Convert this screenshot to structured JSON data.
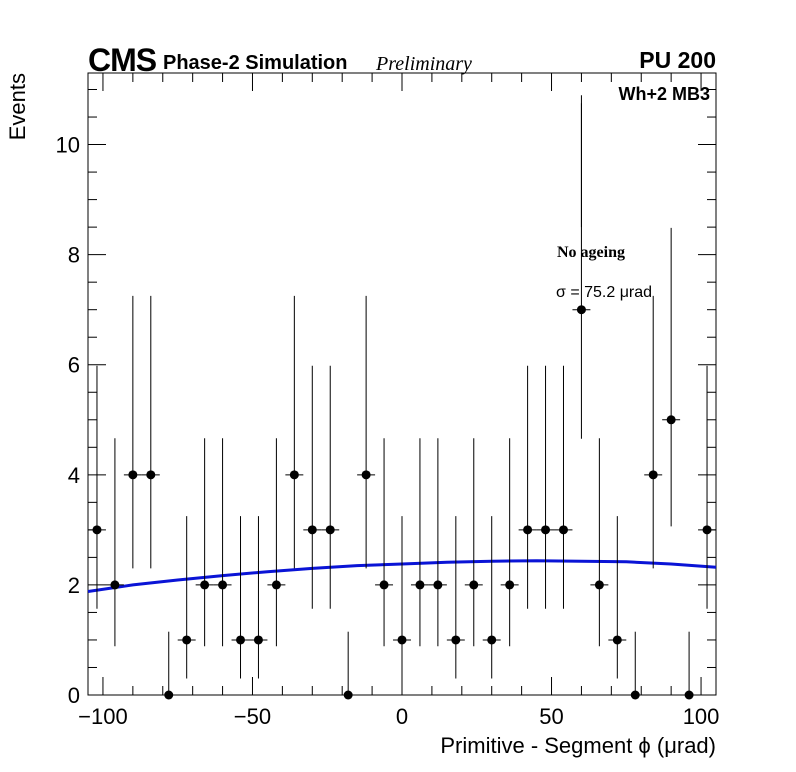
{
  "header": {
    "experiment": "CMS",
    "subtitle": "Phase-2 Simulation",
    "status": "Preliminary",
    "pileup": "PU 200"
  },
  "annotations": {
    "chamber": "Wh+2 MB3",
    "condition": "No ageing",
    "sigma": "σ = 75.2  μrad"
  },
  "colors": {
    "fit": "#0a14d6",
    "points": "#000000"
  },
  "chart_data": {
    "type": "scatter",
    "title": "",
    "xlabel": "Primitive - Segment ϕ (μrad)",
    "ylabel": "Events",
    "xlim": [
      -105,
      105
    ],
    "ylim": [
      0,
      11.3
    ],
    "grid": false,
    "xticks": [
      -100,
      -50,
      0,
      50,
      100
    ],
    "xtick_labels": [
      "−100",
      "−50",
      "0",
      "50",
      "100"
    ],
    "yticks": [
      0,
      2,
      4,
      6,
      8,
      10
    ],
    "ytick_labels": [
      "0",
      "2",
      "4",
      "6",
      "8",
      "10"
    ],
    "bin_width": 6,
    "series": [
      {
        "name": "Simulation (No ageing)",
        "x": [
          -102,
          -96,
          -90,
          -84,
          -78,
          -72,
          -66,
          -60,
          -54,
          -48,
          -42,
          -36,
          -30,
          -24,
          -18,
          -12,
          -6,
          0,
          6,
          12,
          18,
          24,
          30,
          36,
          42,
          48,
          54,
          60,
          66,
          72,
          78,
          84,
          90,
          96,
          102
        ],
        "y": [
          3,
          2,
          4,
          4,
          0,
          1,
          2,
          2,
          1,
          1,
          2,
          4,
          3,
          3,
          0,
          4,
          2,
          1,
          2,
          2,
          1,
          2,
          1,
          2,
          3,
          3,
          3,
          7,
          2,
          1,
          0,
          4,
          5,
          0,
          3
        ]
      },
      {
        "name": "Gaussian fit",
        "x": [
          -105,
          -90,
          -75,
          -60,
          -45,
          -30,
          -15,
          0,
          15,
          30,
          45,
          60,
          75,
          90,
          105
        ],
        "y": [
          1.88,
          2.0,
          2.09,
          2.17,
          2.24,
          2.3,
          2.35,
          2.38,
          2.41,
          2.43,
          2.44,
          2.43,
          2.42,
          2.38,
          2.32
        ]
      }
    ]
  }
}
